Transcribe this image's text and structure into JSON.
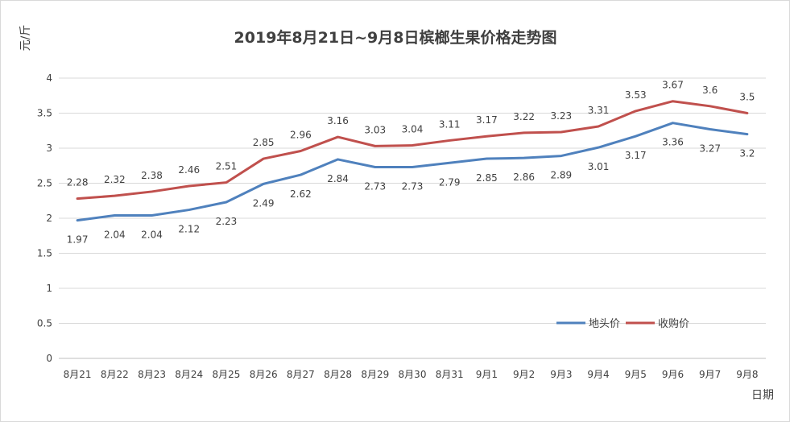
{
  "chart_data": {
    "type": "line",
    "title": "2019年8月21日~9月8日槟榔生果价格走势图",
    "xlabel": "日期",
    "ylabel": "元/斤",
    "ylim": [
      0,
      4
    ],
    "yticks": [
      "0",
      "0.5",
      "1",
      "1.5",
      "2",
      "2.5",
      "3",
      "3.5",
      "4"
    ],
    "grid": true,
    "legend_position": "right",
    "categories": [
      "8月21",
      "8月22",
      "8月23",
      "8月24",
      "8月25",
      "8月26",
      "8月27",
      "8月28",
      "8月29",
      "8月30",
      "8月31",
      "9月1",
      "9月2",
      "9月3",
      "9月4",
      "9月5",
      "9月6",
      "9月7",
      "9月8"
    ],
    "series": [
      {
        "name": "地头价",
        "color": "#4f81bd",
        "values": [
          1.97,
          2.04,
          2.04,
          2.12,
          2.23,
          2.49,
          2.62,
          2.84,
          2.73,
          2.73,
          2.79,
          2.85,
          2.86,
          2.89,
          3.01,
          3.17,
          3.36,
          3.27,
          3.2
        ],
        "labels": [
          "1.97",
          "2.04",
          "2.04",
          "2.12",
          "2.23",
          "2.49",
          "2.62",
          "2.84",
          "2.73",
          "2.73",
          "2.79",
          "2.85",
          "2.86",
          "2.89",
          "3.01",
          "3.17",
          "3.36",
          "3.27",
          "3.2"
        ]
      },
      {
        "name": "收购价",
        "color": "#c0504d",
        "values": [
          2.28,
          2.32,
          2.38,
          2.46,
          2.51,
          2.85,
          2.96,
          3.16,
          3.03,
          3.04,
          3.11,
          3.17,
          3.22,
          3.23,
          3.31,
          3.53,
          3.67,
          3.6,
          3.5
        ],
        "labels": [
          "2.28",
          "2.32",
          "2.38",
          "2.46",
          "2.51",
          "2.85",
          "2.96",
          "3.16",
          "3.03",
          "3.04",
          "3.11",
          "3.17",
          "3.22",
          "3.23",
          "3.31",
          "3.53",
          "3.67",
          "3.6",
          "3.5"
        ]
      }
    ]
  }
}
